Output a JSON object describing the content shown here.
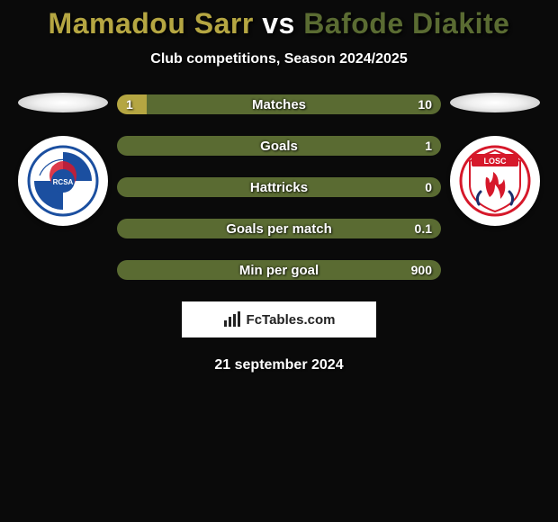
{
  "background_color": "#0a0a0a",
  "title": {
    "player1": "Mamadou Sarr",
    "vs": "vs",
    "player2": "Bafode Diakite",
    "color_p1": "#b5a642",
    "color_vs": "#ffffff",
    "color_p2": "#5a6b32",
    "fontsize": 32
  },
  "subtitle": {
    "text": "Club competitions, Season 2024/2025",
    "color": "#ffffff",
    "fontsize": 16
  },
  "colors": {
    "left_series": "#b5a642",
    "right_series": "#5a6b32",
    "bar_label": "#ffffff",
    "value_text": "#ffffff"
  },
  "bars": [
    {
      "label": "Matches",
      "left_value": "1",
      "right_value": "10",
      "left_percent": 9.1
    },
    {
      "label": "Goals",
      "left_value": "",
      "right_value": "1",
      "left_percent": 0
    },
    {
      "label": "Hattricks",
      "left_value": "",
      "right_value": "0",
      "left_percent": 0
    },
    {
      "label": "Goals per match",
      "left_value": "",
      "right_value": "0.1",
      "left_percent": 0
    },
    {
      "label": "Min per goal",
      "left_value": "",
      "right_value": "900",
      "left_percent": 0
    }
  ],
  "left_club": {
    "name": "Racing Club de Strasbourg Alsace",
    "primary": "#1b4fa0",
    "secondary": "#d6182a",
    "tertiary": "#ffffff"
  },
  "right_club": {
    "name": "Lille OSC",
    "primary": "#d6182a",
    "secondary": "#1b2e6b",
    "tertiary": "#ffffff"
  },
  "footer": {
    "brand": "FcTables.com",
    "box_bg": "#ffffff",
    "text_color": "#222222"
  },
  "date": {
    "text": "21 september 2024",
    "color": "#ffffff",
    "fontsize": 16
  }
}
